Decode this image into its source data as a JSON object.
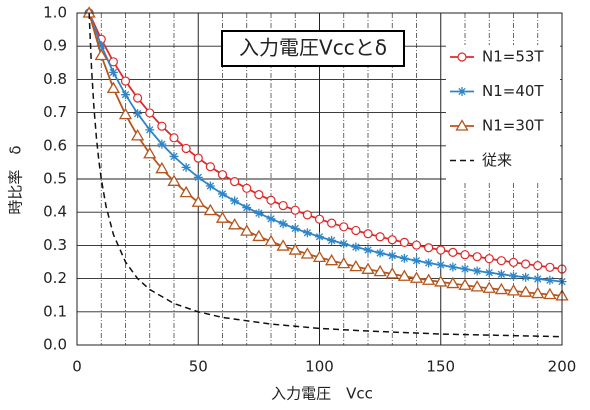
{
  "chart_data": {
    "type": "line",
    "title": "入力電圧Vccとδ",
    "x_label": "入力電圧　Vcc",
    "y_label": "時比率　δ",
    "xlim": [
      0,
      200
    ],
    "ylim": [
      0,
      1
    ],
    "xticks": [
      0,
      50,
      100,
      150,
      200
    ],
    "x_minor_ticks": [
      10,
      20,
      30,
      40,
      60,
      70,
      80,
      90,
      110,
      120,
      130,
      140,
      160,
      170,
      180,
      190
    ],
    "yticks": [
      {
        "value": 0,
        "label": "0.0"
      },
      0.1,
      0.2,
      0.3,
      0.4,
      0.5,
      0.6,
      0.7,
      0.8,
      0.9,
      {
        "value": 1,
        "label": "1.0"
      }
    ],
    "grid": true,
    "legend": "upper right",
    "series": [
      {
        "name": "N1=53T",
        "color": "#e02a2a",
        "marker": "circle",
        "x": [
          5,
          10,
          15,
          20,
          25,
          30,
          35,
          40,
          45,
          50,
          55,
          60,
          65,
          70,
          75,
          80,
          85,
          90,
          95,
          100,
          105,
          110,
          115,
          120,
          125,
          130,
          135,
          140,
          145,
          150,
          155,
          160,
          165,
          170,
          175,
          180,
          185,
          190,
          195,
          200
        ],
        "values": [
          1,
          0.921,
          0.853,
          0.795,
          0.744,
          0.699,
          0.659,
          0.624,
          0.592,
          0.563,
          0.537,
          0.513,
          0.492,
          0.472,
          0.453,
          0.436,
          0.42,
          0.406,
          0.392,
          0.379,
          0.367,
          0.356,
          0.345,
          0.335,
          0.326,
          0.317,
          0.309,
          0.301,
          0.293,
          0.286,
          0.279,
          0.272,
          0.266,
          0.26,
          0.254,
          0.249,
          0.244,
          0.239,
          0.234,
          0.229
        ]
      },
      {
        "name": "N1=40T",
        "color": "#2e86c8",
        "marker": "asterisk",
        "x": [
          5,
          10,
          15,
          20,
          25,
          30,
          35,
          40,
          45,
          50,
          55,
          60,
          65,
          70,
          75,
          80,
          85,
          90,
          95,
          100,
          105,
          110,
          115,
          120,
          125,
          130,
          135,
          140,
          145,
          150,
          155,
          160,
          165,
          170,
          175,
          180,
          185,
          190,
          195,
          200
        ],
        "values": [
          1,
          0.902,
          0.821,
          0.754,
          0.697,
          0.648,
          0.605,
          0.568,
          0.535,
          0.505,
          0.479,
          0.455,
          0.434,
          0.414,
          0.397,
          0.38,
          0.365,
          0.351,
          0.338,
          0.326,
          0.315,
          0.305,
          0.295,
          0.286,
          0.277,
          0.269,
          0.261,
          0.254,
          0.247,
          0.241,
          0.235,
          0.229,
          0.223,
          0.218,
          0.213,
          0.208,
          0.204,
          0.199,
          0.195,
          0.191
        ]
      },
      {
        "name": "N1=30T",
        "color": "#b5561c",
        "marker": "triangle",
        "x": [
          5,
          10,
          15,
          20,
          25,
          30,
          35,
          40,
          45,
          50,
          55,
          60,
          65,
          70,
          75,
          80,
          85,
          90,
          95,
          100,
          105,
          110,
          115,
          120,
          125,
          130,
          135,
          140,
          145,
          150,
          155,
          160,
          165,
          170,
          175,
          180,
          185,
          190,
          195,
          200
        ],
        "values": [
          1,
          0.872,
          0.773,
          0.694,
          0.63,
          0.576,
          0.531,
          0.493,
          0.459,
          0.43,
          0.405,
          0.382,
          0.362,
          0.343,
          0.327,
          0.312,
          0.298,
          0.286,
          0.274,
          0.264,
          0.254,
          0.245,
          0.236,
          0.228,
          0.221,
          0.214,
          0.207,
          0.201,
          0.195,
          0.19,
          0.185,
          0.18,
          0.175,
          0.171,
          0.167,
          0.163,
          0.159,
          0.155,
          0.152,
          0.148
        ]
      },
      {
        "name": "従来",
        "color": "#111111",
        "marker": "none",
        "dashed": true,
        "x": [
          5,
          6,
          7,
          8,
          9,
          10,
          12,
          15,
          20,
          25,
          30,
          40,
          50,
          60,
          80,
          100,
          120,
          150,
          175,
          200
        ],
        "values": [
          1,
          0.833,
          0.714,
          0.625,
          0.556,
          0.5,
          0.417,
          0.333,
          0.25,
          0.2,
          0.167,
          0.125,
          0.1,
          0.083,
          0.063,
          0.05,
          0.042,
          0.033,
          0.029,
          0.025
        ]
      }
    ]
  }
}
